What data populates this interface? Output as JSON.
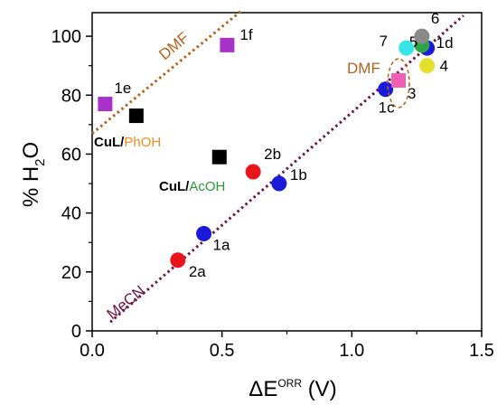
{
  "chart_data": {
    "type": "scatter",
    "x_axis": {
      "base": "ΔE",
      "superscript": "ORR",
      "unit": "(V)",
      "range": [
        0,
        1.5
      ],
      "ticks": [
        "0.0",
        "0.5",
        "1.0",
        "1.5"
      ],
      "tick_values": [
        0,
        0.5,
        1.0,
        1.5
      ]
    },
    "y_axis": {
      "prefix": "% H",
      "subscript": "2",
      "suffix": "O",
      "range": [
        0,
        108
      ],
      "ticks": [
        "0",
        "20",
        "40",
        "60",
        "80",
        "100"
      ],
      "tick_values": [
        0,
        20,
        40,
        60,
        80,
        100
      ]
    },
    "grid": false,
    "points": [
      {
        "label": "1a",
        "x": 0.43,
        "y": 33,
        "marker": "circle",
        "color": "#1a1adb"
      },
      {
        "label": "1b",
        "x": 0.72,
        "y": 50,
        "marker": "circle",
        "color": "#1a1adb"
      },
      {
        "label": "1c",
        "x": 1.13,
        "y": 82,
        "marker": "circle",
        "color": "#1a1adb"
      },
      {
        "label": "1d",
        "x": 1.29,
        "y": 96,
        "marker": "circle",
        "color": "#1a1adb"
      },
      {
        "label": "2a",
        "x": 0.33,
        "y": 24,
        "marker": "circle",
        "color": "#e8161b"
      },
      {
        "label": "2b",
        "x": 0.62,
        "y": 54,
        "marker": "circle",
        "color": "#e8161b"
      },
      {
        "label": "3",
        "x": 1.18,
        "y": 85,
        "marker": "square",
        "color": "#ef5fb4"
      },
      {
        "label": "4",
        "x": 1.29,
        "y": 90,
        "marker": "circle",
        "color": "#e3df2a"
      },
      {
        "label": "5",
        "x": 1.27,
        "y": 97,
        "marker": "circle",
        "color": "#2ea64a"
      },
      {
        "label": "6",
        "x": 1.27,
        "y": 100,
        "marker": "circle",
        "color": "#8a8a8a"
      },
      {
        "label": "7",
        "x": 1.21,
        "y": 96,
        "marker": "circle",
        "color": "#36e6e6"
      },
      {
        "label": "1e",
        "x": 0.05,
        "y": 77,
        "marker": "square",
        "color": "#a832c8"
      },
      {
        "label": "1f",
        "x": 0.52,
        "y": 97,
        "marker": "square",
        "color": "#a832c8"
      },
      {
        "label": "",
        "x": 0.17,
        "y": 73,
        "marker": "square",
        "color": "#000000"
      },
      {
        "label": "",
        "x": 0.49,
        "y": 59,
        "marker": "square",
        "color": "#000000"
      }
    ],
    "fit_lines": [
      {
        "name": "MeCN",
        "color": "#6b1445",
        "from": [
          0.07,
          3
        ],
        "to": [
          1.43,
          107
        ]
      },
      {
        "name": "DMF",
        "color": "#b5621a",
        "from": [
          0.0,
          67
        ],
        "to": [
          0.58,
          109
        ]
      }
    ],
    "annotations": [
      {
        "id": "cul-phoh",
        "part1": "CuL",
        "slash": "/",
        "part2": "PhOH",
        "color1": "#000000",
        "color2": "#f08c1f"
      },
      {
        "id": "cul-acoh",
        "part1": "CuL",
        "slash": "/",
        "part2": "AcOH",
        "color1": "#000000",
        "color2": "#2a9a3a"
      },
      {
        "id": "dmf-ellipse",
        "text": "DMF",
        "color": "#b5621a"
      }
    ]
  }
}
